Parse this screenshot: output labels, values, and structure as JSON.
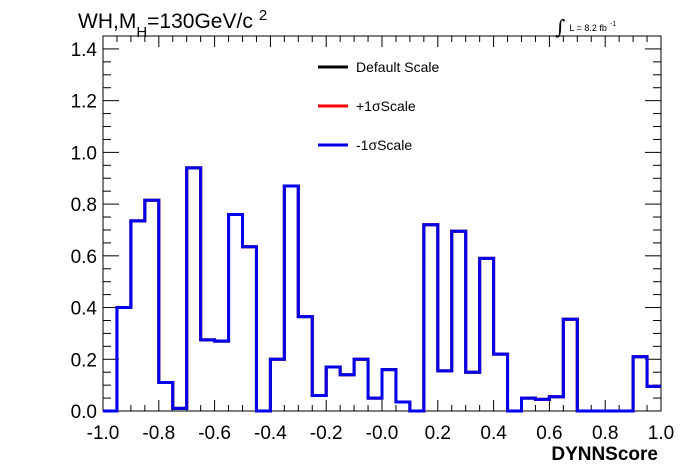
{
  "chart_data": {
    "type": "line",
    "style": "step-histogram",
    "title": {
      "main": "WH,M",
      "subscript": "H",
      "rest": "=130GeV/c",
      "superscript": "2"
    },
    "luminosity": {
      "integral_symbol": "∫",
      "text": "L = 8.2 fb",
      "superscript": "-1"
    },
    "xlabel": "DYNNScore",
    "ylabel": "",
    "xlim": [
      -1.0,
      1.0
    ],
    "ylim": [
      0.0,
      1.45
    ],
    "xticks": [
      {
        "value": -1.0,
        "label": "-1.0"
      },
      {
        "value": -0.8,
        "label": "-0.8"
      },
      {
        "value": -0.6,
        "label": "-0.6"
      },
      {
        "value": -0.4,
        "label": "-0.4"
      },
      {
        "value": -0.2,
        "label": "-0.2"
      },
      {
        "value": 0.0,
        "label": "-0.0"
      },
      {
        "value": 0.2,
        "label": "0.2"
      },
      {
        "value": 0.4,
        "label": "0.4"
      },
      {
        "value": 0.6,
        "label": "0.6"
      },
      {
        "value": 0.8,
        "label": "0.8"
      },
      {
        "value": 1.0,
        "label": "1.0"
      }
    ],
    "yticks": [
      {
        "value": 0.0,
        "label": "0.0"
      },
      {
        "value": 0.2,
        "label": "0.2"
      },
      {
        "value": 0.4,
        "label": "0.4"
      },
      {
        "value": 0.6,
        "label": "0.6"
      },
      {
        "value": 0.8,
        "label": "0.8"
      },
      {
        "value": 1.0,
        "label": "1.0"
      },
      {
        "value": 1.2,
        "label": "1.2"
      },
      {
        "value": 1.4,
        "label": "1.4"
      }
    ],
    "grid": false,
    "legend_position": "top-center",
    "bin_edges": [
      -1.0,
      -0.95,
      -0.9,
      -0.85,
      -0.8,
      -0.75,
      -0.7,
      -0.65,
      -0.6,
      -0.55,
      -0.5,
      -0.45,
      -0.4,
      -0.35,
      -0.3,
      -0.25,
      -0.2,
      -0.15,
      -0.1,
      -0.05,
      0.0,
      0.05,
      0.1,
      0.15,
      0.2,
      0.25,
      0.3,
      0.35,
      0.4,
      0.45,
      0.5,
      0.55,
      0.6,
      0.65,
      0.7,
      0.75,
      0.8,
      0.85,
      0.9,
      0.95,
      1.0
    ],
    "series": [
      {
        "name": "Default Scale",
        "color": "#000000",
        "values": [
          0.0,
          0.4,
          0.735,
          0.815,
          0.11,
          0.01,
          0.94,
          0.275,
          0.27,
          0.76,
          0.635,
          0.0,
          0.2,
          0.87,
          0.365,
          0.06,
          0.17,
          0.14,
          0.2,
          0.05,
          0.16,
          0.035,
          0.0,
          0.72,
          0.155,
          0.695,
          0.15,
          0.59,
          0.22,
          0.0,
          0.05,
          0.045,
          0.055,
          0.355,
          0.0,
          0.0,
          0.0,
          0.0,
          0.21,
          0.095
        ]
      },
      {
        "name": "+1σScale",
        "color": "#ff0000",
        "values": [
          0.0,
          0.4,
          0.735,
          0.815,
          0.11,
          0.01,
          0.94,
          0.275,
          0.27,
          0.76,
          0.635,
          0.0,
          0.2,
          0.87,
          0.365,
          0.06,
          0.17,
          0.14,
          0.2,
          0.05,
          0.16,
          0.035,
          0.0,
          0.72,
          0.155,
          0.695,
          0.15,
          0.59,
          0.22,
          0.0,
          0.05,
          0.045,
          0.055,
          0.355,
          0.0,
          0.0,
          0.0,
          0.0,
          0.21,
          0.095
        ]
      },
      {
        "name": "-1σScale",
        "color": "#0000ee",
        "values": [
          0.0,
          0.4,
          0.735,
          0.815,
          0.11,
          0.01,
          0.94,
          0.275,
          0.27,
          0.76,
          0.635,
          0.0,
          0.2,
          0.87,
          0.365,
          0.06,
          0.17,
          0.14,
          0.2,
          0.05,
          0.16,
          0.035,
          0.0,
          0.72,
          0.155,
          0.695,
          0.15,
          0.59,
          0.22,
          0.0,
          0.05,
          0.045,
          0.055,
          0.355,
          0.0,
          0.0,
          0.0,
          0.0,
          0.21,
          0.095
        ]
      }
    ]
  }
}
